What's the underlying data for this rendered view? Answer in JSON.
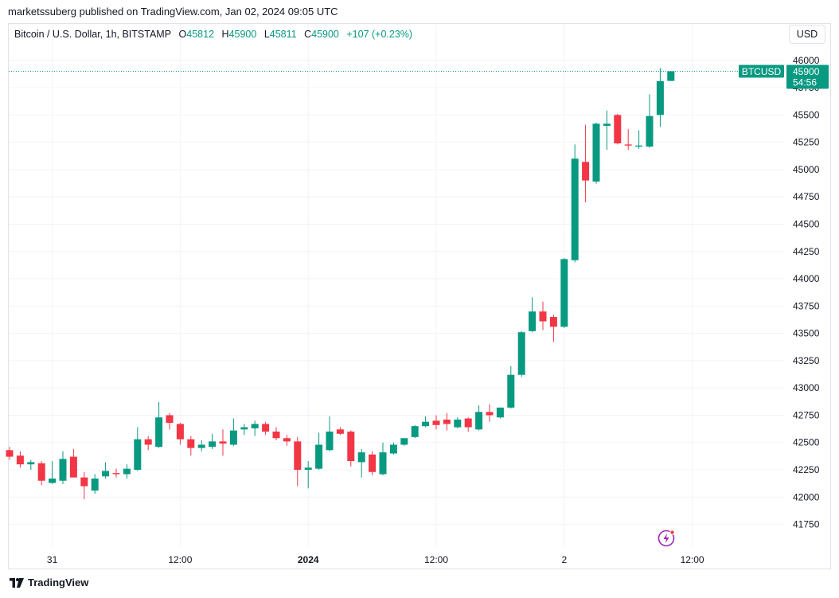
{
  "publish_line": "marketssuberg published on TradingView.com, Jan 02, 2024 09:05 UTC",
  "legend": {
    "symbol": "Bitcoin / U.S. Dollar, 1h, BITSTAMP",
    "o_label": "O",
    "o": "45812",
    "h_label": "H",
    "h": "45900",
    "l_label": "L",
    "l": "45811",
    "c_label": "C",
    "c": "45900",
    "change": "+107 (+0.23%)"
  },
  "currency_button": "USD",
  "brand": "TradingView",
  "price_tag": {
    "symbol": "BTCUSD",
    "price": "45900",
    "countdown": "54:56"
  },
  "colors": {
    "up": "#089981",
    "down": "#F23645",
    "grid": "#f0f3fa",
    "axis_text": "#131722"
  },
  "icons": {
    "logo": "tradingview-logo-icon",
    "lightning": "lightning-icon"
  },
  "chart_data": {
    "type": "candlestick",
    "interval": "1h",
    "ylim": [
      41550,
      46130
    ],
    "y_ticks": [
      41750,
      42000,
      42250,
      42500,
      42750,
      43000,
      43250,
      43500,
      43750,
      44000,
      44250,
      44500,
      44750,
      45000,
      45250,
      45500,
      45750,
      46000
    ],
    "x_ticks": [
      {
        "index": 4,
        "label": "31",
        "bold": false
      },
      {
        "index": 16,
        "label": "12:00",
        "bold": false
      },
      {
        "index": 28,
        "label": "2024",
        "bold": true
      },
      {
        "index": 40,
        "label": "12:00",
        "bold": false
      },
      {
        "index": 52,
        "label": "2",
        "bold": false
      },
      {
        "index": 64,
        "label": "12:00",
        "bold": false
      }
    ],
    "last_price": 45900,
    "candles": [
      {
        "o": 42430,
        "h": 42460,
        "l": 42340,
        "c": 42370
      },
      {
        "o": 42380,
        "h": 42420,
        "l": 42270,
        "c": 42300
      },
      {
        "o": 42300,
        "h": 42340,
        "l": 42250,
        "c": 42320
      },
      {
        "o": 42310,
        "h": 42330,
        "l": 42110,
        "c": 42150
      },
      {
        "o": 42130,
        "h": 42330,
        "l": 42120,
        "c": 42170
      },
      {
        "o": 42150,
        "h": 42420,
        "l": 42120,
        "c": 42350
      },
      {
        "o": 42370,
        "h": 42440,
        "l": 42180,
        "c": 42180
      },
      {
        "o": 42180,
        "h": 42230,
        "l": 41980,
        "c": 42100
      },
      {
        "o": 42060,
        "h": 42210,
        "l": 42030,
        "c": 42170
      },
      {
        "o": 42190,
        "h": 42320,
        "l": 42170,
        "c": 42240
      },
      {
        "o": 42220,
        "h": 42260,
        "l": 42180,
        "c": 42210
      },
      {
        "o": 42210,
        "h": 42300,
        "l": 42170,
        "c": 42260
      },
      {
        "o": 42250,
        "h": 42640,
        "l": 42240,
        "c": 42530
      },
      {
        "o": 42530,
        "h": 42560,
        "l": 42430,
        "c": 42480
      },
      {
        "o": 42460,
        "h": 42870,
        "l": 42450,
        "c": 42730
      },
      {
        "o": 42750,
        "h": 42770,
        "l": 42620,
        "c": 42680
      },
      {
        "o": 42670,
        "h": 42680,
        "l": 42480,
        "c": 42530
      },
      {
        "o": 42530,
        "h": 42560,
        "l": 42380,
        "c": 42450
      },
      {
        "o": 42450,
        "h": 42520,
        "l": 42420,
        "c": 42480
      },
      {
        "o": 42460,
        "h": 42580,
        "l": 42440,
        "c": 42510
      },
      {
        "o": 42510,
        "h": 42620,
        "l": 42380,
        "c": 42490
      },
      {
        "o": 42480,
        "h": 42720,
        "l": 42470,
        "c": 42610
      },
      {
        "o": 42620,
        "h": 42670,
        "l": 42570,
        "c": 42640
      },
      {
        "o": 42630,
        "h": 42700,
        "l": 42560,
        "c": 42670
      },
      {
        "o": 42670,
        "h": 42690,
        "l": 42570,
        "c": 42600
      },
      {
        "o": 42600,
        "h": 42640,
        "l": 42520,
        "c": 42540
      },
      {
        "o": 42540,
        "h": 42570,
        "l": 42470,
        "c": 42510
      },
      {
        "o": 42510,
        "h": 42550,
        "l": 42100,
        "c": 42250
      },
      {
        "o": 42250,
        "h": 42330,
        "l": 42080,
        "c": 42270
      },
      {
        "o": 42260,
        "h": 42590,
        "l": 42250,
        "c": 42480
      },
      {
        "o": 42430,
        "h": 42740,
        "l": 42420,
        "c": 42600
      },
      {
        "o": 42620,
        "h": 42640,
        "l": 42570,
        "c": 42580
      },
      {
        "o": 42600,
        "h": 42610,
        "l": 42280,
        "c": 42330
      },
      {
        "o": 42320,
        "h": 42440,
        "l": 42180,
        "c": 42410
      },
      {
        "o": 42390,
        "h": 42420,
        "l": 42200,
        "c": 42230
      },
      {
        "o": 42210,
        "h": 42500,
        "l": 42200,
        "c": 42410
      },
      {
        "o": 42400,
        "h": 42500,
        "l": 42390,
        "c": 42480
      },
      {
        "o": 42480,
        "h": 42540,
        "l": 42470,
        "c": 42540
      },
      {
        "o": 42550,
        "h": 42660,
        "l": 42540,
        "c": 42650
      },
      {
        "o": 42650,
        "h": 42740,
        "l": 42640,
        "c": 42690
      },
      {
        "o": 42700,
        "h": 42750,
        "l": 42620,
        "c": 42660
      },
      {
        "o": 42710,
        "h": 42770,
        "l": 42610,
        "c": 42670
      },
      {
        "o": 42640,
        "h": 42730,
        "l": 42630,
        "c": 42710
      },
      {
        "o": 42720,
        "h": 42730,
        "l": 42600,
        "c": 42640
      },
      {
        "o": 42620,
        "h": 42840,
        "l": 42610,
        "c": 42780
      },
      {
        "o": 42780,
        "h": 42850,
        "l": 42690,
        "c": 42750
      },
      {
        "o": 42730,
        "h": 42820,
        "l": 42720,
        "c": 42820
      },
      {
        "o": 42820,
        "h": 43200,
        "l": 42810,
        "c": 43120
      },
      {
        "o": 43120,
        "h": 43520,
        "l": 43100,
        "c": 43510
      },
      {
        "o": 43520,
        "h": 43830,
        "l": 43510,
        "c": 43700
      },
      {
        "o": 43700,
        "h": 43790,
        "l": 43530,
        "c": 43610
      },
      {
        "o": 43650,
        "h": 43670,
        "l": 43420,
        "c": 43560
      },
      {
        "o": 43560,
        "h": 44190,
        "l": 43550,
        "c": 44180
      },
      {
        "o": 44170,
        "h": 45230,
        "l": 44150,
        "c": 45100
      },
      {
        "o": 45070,
        "h": 45410,
        "l": 44700,
        "c": 44900
      },
      {
        "o": 44890,
        "h": 45430,
        "l": 44870,
        "c": 45420
      },
      {
        "o": 45400,
        "h": 45540,
        "l": 45180,
        "c": 45420
      },
      {
        "o": 45500,
        "h": 45510,
        "l": 45230,
        "c": 45240
      },
      {
        "o": 45230,
        "h": 45370,
        "l": 45180,
        "c": 45220
      },
      {
        "o": 45210,
        "h": 45360,
        "l": 45190,
        "c": 45220
      },
      {
        "o": 45210,
        "h": 45690,
        "l": 45200,
        "c": 45490
      },
      {
        "o": 45500,
        "h": 45930,
        "l": 45390,
        "c": 45810
      },
      {
        "o": 45812,
        "h": 45900,
        "l": 45811,
        "c": 45900
      }
    ]
  }
}
